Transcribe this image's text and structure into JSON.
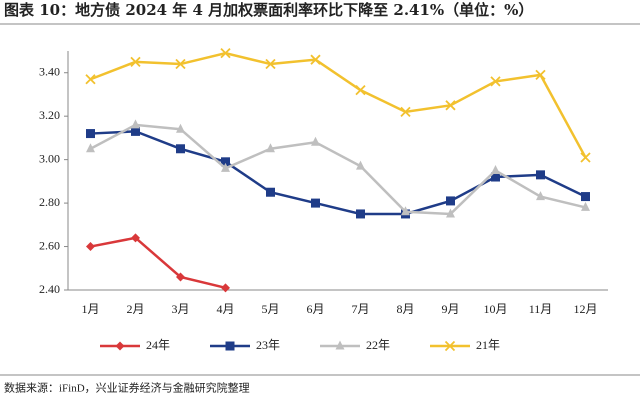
{
  "chart_data": {
    "type": "line",
    "title": "图表 10：地方债 2024 年 4 月加权票面利率环比下降至 2.41%（单位：%）",
    "source": "数据来源：iFinD，兴业证券经济与金融研究院整理",
    "categories": [
      "1月",
      "2月",
      "3月",
      "4月",
      "5月",
      "6月",
      "7月",
      "8月",
      "9月",
      "10月",
      "11月",
      "12月"
    ],
    "series": [
      {
        "name": "24年",
        "color": "#d9383a",
        "marker": "diamond",
        "values": [
          2.6,
          2.64,
          2.46,
          2.41,
          null,
          null,
          null,
          null,
          null,
          null,
          null,
          null
        ]
      },
      {
        "name": "23年",
        "color": "#1f3c88",
        "marker": "square",
        "values": [
          3.12,
          3.13,
          3.05,
          2.99,
          2.85,
          2.8,
          2.75,
          2.75,
          2.81,
          2.92,
          2.93,
          2.83
        ]
      },
      {
        "name": "22年",
        "color": "#bfbfbf",
        "marker": "triangle",
        "values": [
          3.05,
          3.16,
          3.14,
          2.96,
          3.05,
          3.08,
          2.97,
          2.76,
          2.75,
          2.95,
          2.83,
          2.78
        ]
      },
      {
        "name": "21年",
        "color": "#f2c12e",
        "marker": "x",
        "values": [
          3.37,
          3.45,
          3.44,
          3.49,
          3.44,
          3.46,
          3.32,
          3.22,
          3.25,
          3.36,
          3.39,
          3.01
        ]
      }
    ],
    "ylim": [
      2.4,
      3.5
    ],
    "yticks": [
      {
        "value": 2.4,
        "label": "2.40"
      },
      {
        "value": 2.6,
        "label": "2.60"
      },
      {
        "value": 2.8,
        "label": "2.80"
      },
      {
        "value": 3.0,
        "label": "3.00"
      },
      {
        "value": 3.2,
        "label": "3.20"
      },
      {
        "value": 3.4,
        "label": "3.40"
      }
    ],
    "grid": false,
    "legend": "bottom"
  }
}
